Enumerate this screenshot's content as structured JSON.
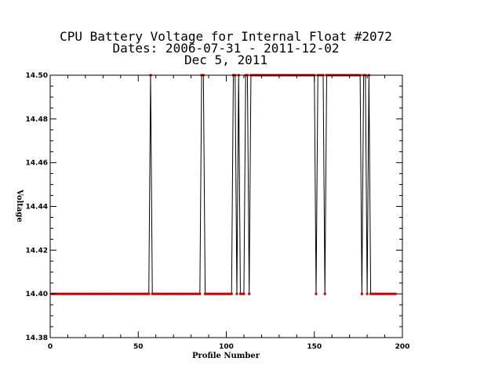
{
  "chart_data": {
    "type": "line",
    "title_lines": [
      "CPU Battery Voltage for Internal Float #2072",
      "Dates:  2006-07-31 -  2011-12-02",
      "Dec  5, 2011"
    ],
    "xlabel": "Profile Number",
    "ylabel": "Voltage",
    "xlim": [
      0,
      200
    ],
    "ylim": [
      14.38,
      14.5
    ],
    "x_ticks": [
      0,
      50,
      100,
      150,
      200
    ],
    "y_ticks": [
      "14.38",
      "14.40",
      "14.42",
      "14.44",
      "14.46",
      "14.48",
      "14.50"
    ],
    "grid": false,
    "colors": {
      "line": "#000000",
      "points": "#cc0000",
      "axes": "#000000",
      "background": "#ffffff"
    },
    "low_value": 14.4,
    "high_value": 14.5,
    "n_profiles": 196,
    "high_profiles": [
      57,
      86,
      87,
      104,
      105,
      107,
      111,
      112,
      114,
      115,
      116,
      117,
      118,
      119,
      120,
      121,
      122,
      123,
      124,
      125,
      126,
      127,
      128,
      129,
      130,
      131,
      132,
      133,
      134,
      135,
      136,
      137,
      138,
      139,
      140,
      141,
      142,
      143,
      144,
      145,
      146,
      147,
      148,
      149,
      150,
      152,
      153,
      154,
      155,
      157,
      158,
      159,
      160,
      161,
      162,
      163,
      164,
      165,
      166,
      167,
      168,
      169,
      170,
      171,
      172,
      173,
      174,
      175,
      176,
      178,
      179,
      181
    ]
  }
}
